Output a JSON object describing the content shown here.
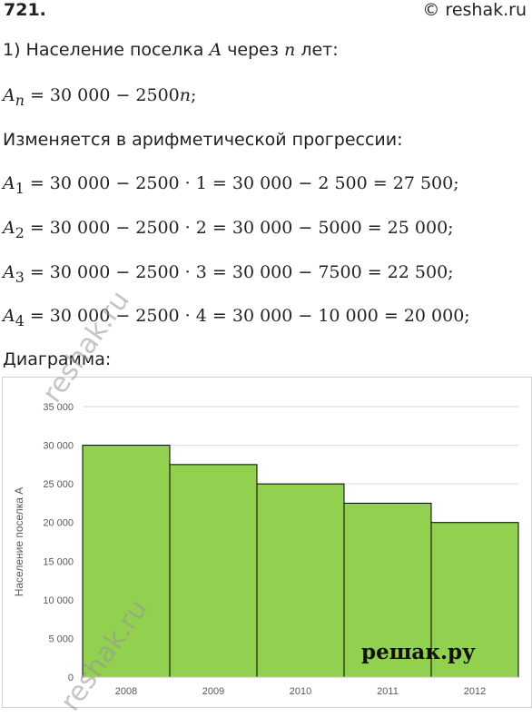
{
  "header": {
    "problem_number": "721.",
    "site": "© reshak.ru"
  },
  "lines": {
    "intro_prefix": "1) Население поселка ",
    "intro_var": "A",
    "intro_mid": " через ",
    "intro_n": "n",
    "intro_suffix": " лет:",
    "formula_lhs": "A",
    "formula_sub": "n",
    "formula_rhs": " = 30 000 − 2500",
    "formula_n": "n",
    "formula_end": ";",
    "progression": "Изменяется в арифметической прогрессии:",
    "a1_sub": "1",
    "a1_rhs": " = 30 000 − 2500 · 1 = 30 000 − 2 500 = 27 500;",
    "a2_sub": "2",
    "a2_rhs": " = 30 000 − 2500 · 2 = 30 000 − 5000 = 25 000;",
    "a3_sub": "3",
    "a3_rhs": " = 30 000 − 2500 · 3 = 30 000 − 7500 = 22 500;",
    "a4_sub": "4",
    "a4_rhs": " = 30 000 − 2500 · 4 = 30 000 − 10 000 = 20 000;",
    "diagram_label": "Диаграмма:"
  },
  "watermarks": {
    "mid": "reshak.ru",
    "bottom": "reshak.ru",
    "stamp": "решак.ру"
  },
  "chart_data": {
    "type": "bar",
    "categories": [
      "2008",
      "2009",
      "2010",
      "2011",
      "2012"
    ],
    "values": [
      30000,
      27500,
      25000,
      22500,
      20000
    ],
    "title": "",
    "xlabel": "",
    "ylabel": "Население поселка А",
    "ylim": [
      0,
      35000
    ],
    "yticks": [
      0,
      5000,
      10000,
      15000,
      20000,
      25000,
      30000,
      35000
    ],
    "ytick_labels": [
      "0",
      "5 000",
      "10 000",
      "15 000",
      "20 000",
      "25 000",
      "30 000",
      "35 000"
    ],
    "grid": true,
    "bar_color": "#92d050",
    "bar_edge": "#000000"
  }
}
